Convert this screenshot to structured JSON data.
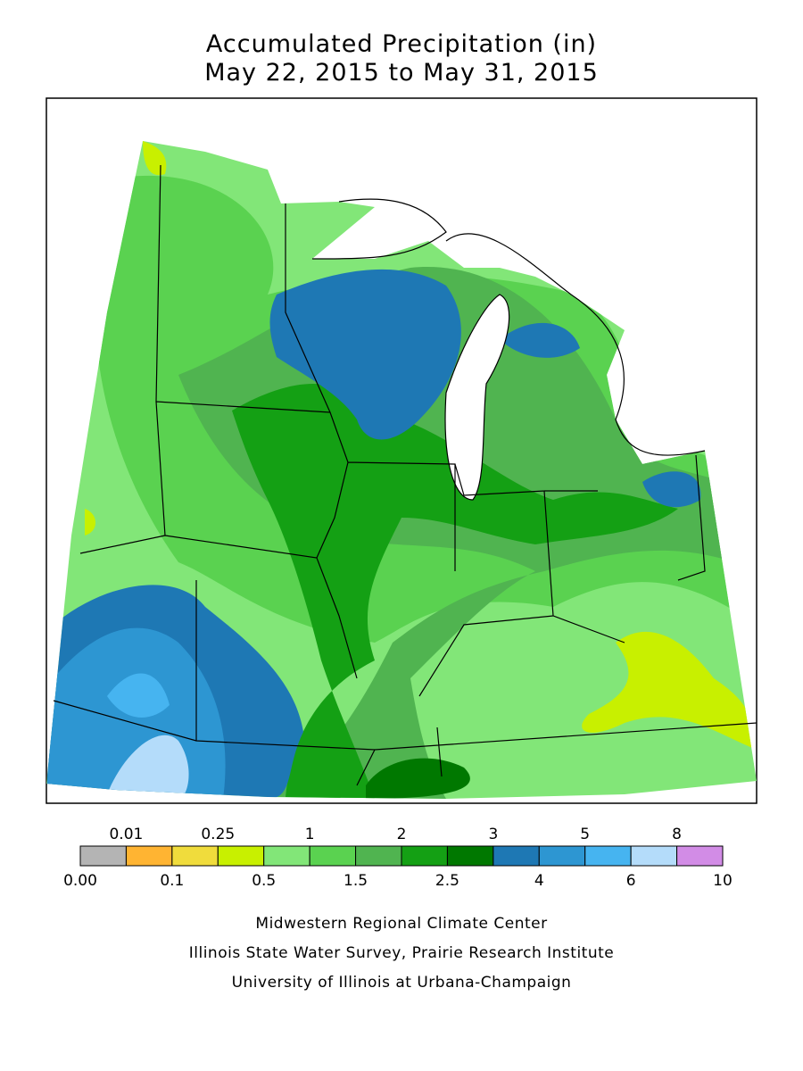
{
  "title": "Accumulated Precipitation (in)",
  "subtitle": "May 22, 2015 to May 31, 2015",
  "legend": {
    "bounds": [
      {
        "value": 0,
        "label": "0.00"
      },
      0.01,
      0.1,
      0.25,
      0.5,
      1,
      1.5,
      2,
      2.5,
      3,
      4,
      5,
      6,
      8,
      10
    ],
    "colors": [
      "#b4b4b4",
      "#ffb432",
      "#f0dc3c",
      "#c8f000",
      "#82e678",
      "#5ad250",
      "#50b450",
      "#14a014",
      "#007800",
      "#1e78b4",
      "#2d96d2",
      "#46b4f0",
      "#b4dcfa",
      "#d28ce6"
    ]
  },
  "credits": [
    "Midwestern Regional Climate Center",
    "Illinois State Water Survey, Prairie Research Institute",
    "University of Illinois at Urbana-Champaign"
  ]
}
